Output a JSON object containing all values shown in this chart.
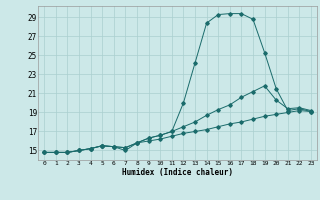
{
  "xlabel": "Humidex (Indice chaleur)",
  "ylabel": "",
  "bg_color": "#cce8e8",
  "line_color": "#1a6b6b",
  "grid_color": "#aacfcf",
  "xlim": [
    -0.5,
    23.5
  ],
  "ylim": [
    14.0,
    30.2
  ],
  "yticks": [
    15,
    17,
    19,
    21,
    23,
    25,
    27,
    29
  ],
  "xticks": [
    0,
    1,
    2,
    3,
    4,
    5,
    6,
    7,
    8,
    9,
    10,
    11,
    12,
    13,
    14,
    15,
    16,
    17,
    18,
    19,
    20,
    21,
    22,
    23
  ],
  "line1_x": [
    0,
    1,
    2,
    3,
    4,
    5,
    5,
    6,
    7,
    8,
    9,
    10,
    11,
    12,
    13,
    14,
    15,
    16,
    17,
    18,
    19,
    20,
    21,
    22,
    23
  ],
  "line1_y": [
    14.8,
    14.8,
    14.8,
    15.0,
    15.2,
    15.5,
    15.5,
    15.4,
    15.0,
    15.8,
    16.3,
    16.6,
    17.0,
    20.0,
    24.2,
    28.4,
    29.3,
    29.4,
    29.4,
    28.8,
    25.3,
    21.5,
    19.2,
    19.4,
    19.1
  ],
  "line2_x": [
    0,
    1,
    2,
    3,
    4,
    5,
    6,
    7,
    8,
    9,
    10,
    11,
    12,
    13,
    14,
    15,
    16,
    17,
    18,
    19,
    20,
    21,
    22,
    23
  ],
  "line2_y": [
    14.8,
    14.8,
    14.8,
    15.0,
    15.2,
    15.5,
    15.4,
    15.3,
    15.8,
    16.3,
    16.6,
    17.0,
    17.5,
    18.0,
    18.7,
    19.3,
    19.8,
    20.6,
    21.2,
    21.8,
    20.3,
    19.4,
    19.5,
    19.2
  ],
  "line3_x": [
    0,
    1,
    2,
    3,
    4,
    5,
    6,
    7,
    8,
    9,
    10,
    11,
    12,
    13,
    14,
    15,
    16,
    17,
    18,
    19,
    20,
    21,
    22,
    23
  ],
  "line3_y": [
    14.8,
    14.8,
    14.8,
    15.0,
    15.2,
    15.5,
    15.4,
    15.3,
    15.8,
    16.0,
    16.2,
    16.5,
    16.8,
    17.0,
    17.2,
    17.5,
    17.8,
    18.0,
    18.3,
    18.6,
    18.8,
    19.0,
    19.2,
    19.1
  ]
}
